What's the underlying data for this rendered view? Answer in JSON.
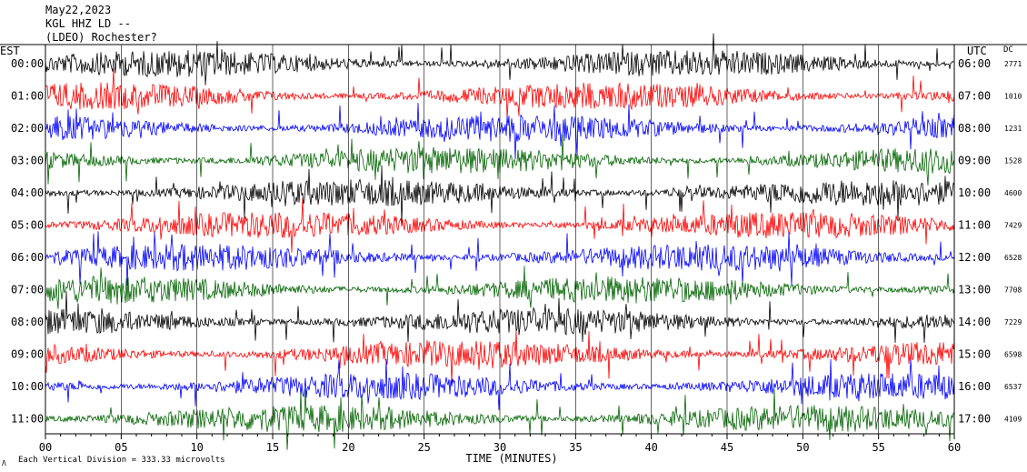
{
  "header": {
    "date": "May22,2023",
    "station": "KGL HHZ LD --",
    "location": "(LDEO) Rochester?"
  },
  "axes": {
    "left_label": "EST",
    "right_label": "UTC",
    "dc_label": "DC",
    "x_title": "TIME (MINUTES)",
    "scale_note": "Each Vertical Division = 333.33 microvolts",
    "corner_mark": "Λ"
  },
  "colors": {
    "line_black": "#000000",
    "line_red": "#ff0000",
    "line_blue": "#0000ff",
    "line_green": "#006400",
    "grid": "#000000"
  },
  "chart_data": {
    "type": "line",
    "title": "",
    "xlabel": "TIME (MINUTES)",
    "xlim": [
      0,
      60
    ],
    "x_ticks": [
      "00",
      "05",
      "10",
      "15",
      "20",
      "25",
      "30",
      "35",
      "40",
      "45",
      "50",
      "55",
      "60"
    ],
    "rows": [
      {
        "est": "00:00",
        "utc": "06:00",
        "dc": "2771",
        "color": "black"
      },
      {
        "est": "01:00",
        "utc": "07:00",
        "dc": "1010",
        "color": "red"
      },
      {
        "est": "02:00",
        "utc": "08:00",
        "dc": "1231",
        "color": "blue"
      },
      {
        "est": "03:00",
        "utc": "09:00",
        "dc": "1528",
        "color": "green"
      },
      {
        "est": "04:00",
        "utc": "10:00",
        "dc": "4600",
        "color": "black"
      },
      {
        "est": "05:00",
        "utc": "11:00",
        "dc": "7429",
        "color": "red"
      },
      {
        "est": "06:00",
        "utc": "12:00",
        "dc": "6528",
        "color": "blue"
      },
      {
        "est": "07:00",
        "utc": "13:00",
        "dc": "7708",
        "color": "green"
      },
      {
        "est": "08:00",
        "utc": "14:00",
        "dc": "7229",
        "color": "black"
      },
      {
        "est": "09:00",
        "utc": "15:00",
        "dc": "6598",
        "color": "red"
      },
      {
        "est": "10:00",
        "utc": "16:00",
        "dc": "6537",
        "color": "blue"
      },
      {
        "est": "11:00",
        "utc": "17:00",
        "dc": "4109",
        "color": "green"
      }
    ]
  }
}
